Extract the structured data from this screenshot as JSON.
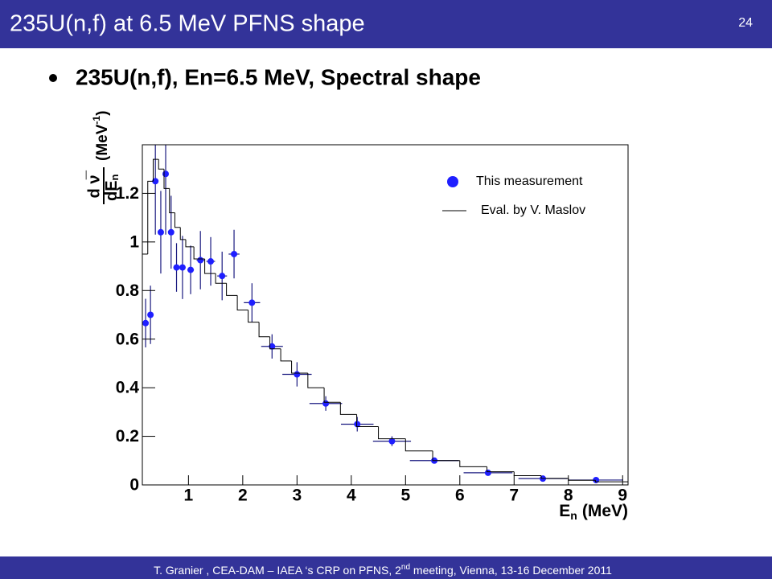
{
  "slide": {
    "title": "235U(n,f) at 6.5 MeV PFNS shape",
    "page_number": "24",
    "bullet": "235U(n,f), En=6.5 MeV, Spectral shape",
    "footer": {
      "before": "T. Granier ,  CEA-DAM – IAEA ‘s CRP on PFNS, 2",
      "sup": "nd",
      "after": " meeting, Vienna, 13-16 December 2011"
    }
  },
  "chart_data": {
    "type": "scatter",
    "xlabel": {
      "symbol": "E",
      "sub": "n",
      "unit": "(MeV)"
    },
    "ylabel": {
      "numerator": "d ν̅",
      "denominator": "dE",
      "sub": "n",
      "unit": "(MeV",
      "sup": "-1",
      "close": ")"
    },
    "xlim": [
      0.15,
      9.1
    ],
    "ylim": [
      0,
      1.4
    ],
    "xticks": [
      1,
      2,
      3,
      4,
      5,
      6,
      7,
      8,
      9
    ],
    "yticks": [
      0,
      0.2,
      0.4,
      0.6,
      0.8,
      1,
      1.2
    ],
    "legend": "upper right",
    "series": [
      {
        "name": "This measurement",
        "color": "#1f1fff",
        "errcolor": "#1a1a80",
        "x": [
          0.21,
          0.3,
          0.39,
          0.49,
          0.58,
          0.68,
          0.78,
          0.89,
          1.04,
          1.22,
          1.41,
          1.62,
          1.84,
          2.17,
          2.54,
          3.0,
          3.53,
          4.11,
          4.75,
          5.53,
          6.52,
          7.53,
          8.51
        ],
        "values": [
          0.666,
          0.7,
          1.25,
          1.04,
          1.28,
          1.04,
          0.895,
          0.895,
          0.885,
          0.925,
          0.92,
          0.86,
          0.95,
          0.75,
          0.57,
          0.455,
          0.335,
          0.25,
          0.18,
          0.1,
          0.05,
          0.026,
          0.02
        ],
        "xerr": [
          0.03,
          0.03,
          0.04,
          0.04,
          0.04,
          0.04,
          0.05,
          0.05,
          0.06,
          0.07,
          0.08,
          0.09,
          0.1,
          0.15,
          0.2,
          0.27,
          0.3,
          0.3,
          0.35,
          0.45,
          0.45,
          0.45,
          0.5
        ],
        "yerr": [
          0.1,
          0.12,
          0.22,
          0.17,
          0.25,
          0.15,
          0.1,
          0.13,
          0.1,
          0.12,
          0.1,
          0.1,
          0.1,
          0.08,
          0.05,
          0.05,
          0.03,
          0.03,
          0.02,
          0.01,
          0.01,
          0.005,
          0.005
        ]
      },
      {
        "name": "Eval. by V. Maslov",
        "type": "step",
        "color": "#000000",
        "bins": [
          0.15,
          0.25,
          0.35,
          0.45,
          0.55,
          0.65,
          0.75,
          0.85,
          0.95,
          1.1,
          1.3,
          1.5,
          1.7,
          1.9,
          2.1,
          2.3,
          2.5,
          2.7,
          2.9,
          3.2,
          3.5,
          3.8,
          4.1,
          4.5,
          5.0,
          5.5,
          6.0,
          6.5,
          7.0,
          7.5,
          8.0,
          8.5,
          9.1
        ],
        "values": [
          0.95,
          1.25,
          1.34,
          1.3,
          1.22,
          1.12,
          1.06,
          1.01,
          0.98,
          0.93,
          0.87,
          0.83,
          0.78,
          0.72,
          0.67,
          0.61,
          0.56,
          0.51,
          0.46,
          0.4,
          0.34,
          0.29,
          0.24,
          0.19,
          0.14,
          0.1,
          0.075,
          0.054,
          0.038,
          0.027,
          0.019,
          0.013
        ]
      }
    ]
  }
}
